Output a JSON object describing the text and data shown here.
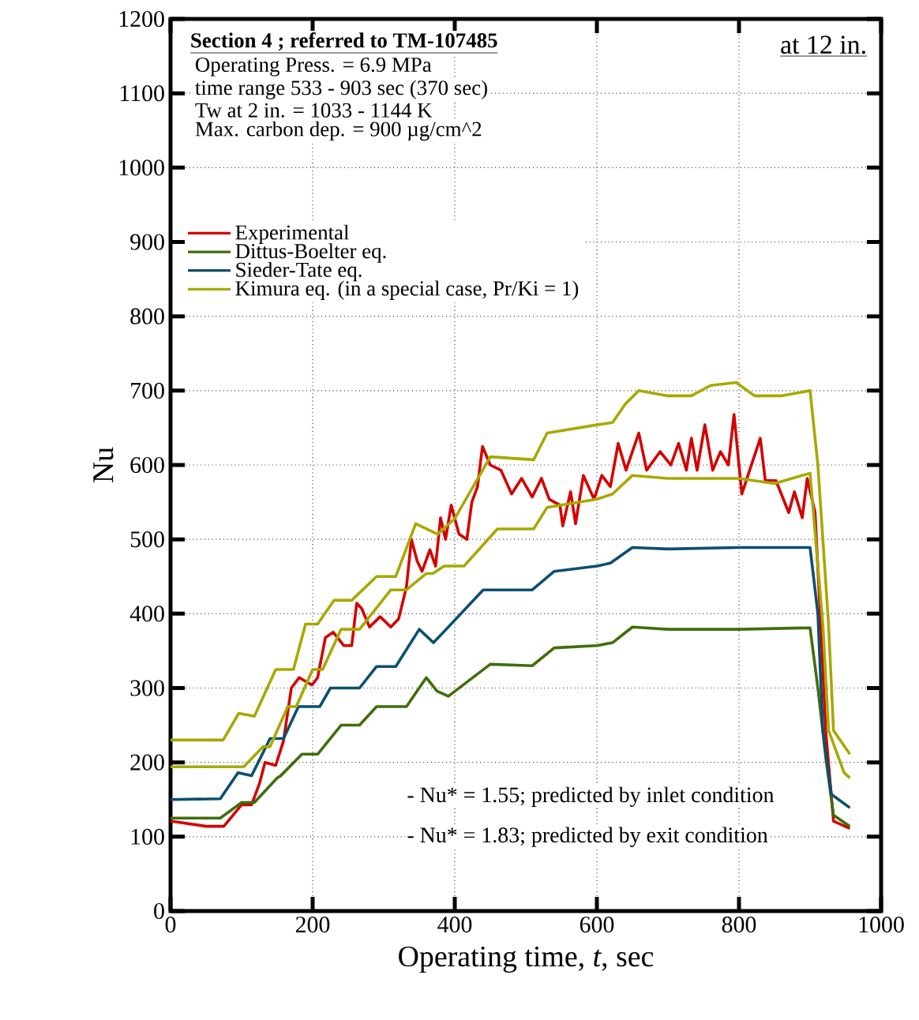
{
  "chart_data": {
    "type": "line",
    "title": "Section 4 ; referred to TM-107485",
    "xlabel": "Operating time,  *t*,  sec",
    "ylabel": "Nu",
    "annotations": [
      "Operating Press. = 6.9 MPa",
      "time range 533 - 903 sec (370 sec)",
      "Tw at 2 in. = 1033 - 1144 K",
      "Max. carbon dep. = 900 µg/cm^2",
      "at 12 in.",
      "- Nu* = 1.55; predicted by inlet condition",
      "- Nu* = 1.83; predicted by exit condition"
    ],
    "xlim": [
      0,
      1000
    ],
    "ylim": [
      0,
      1200
    ],
    "xticks": [
      0,
      200,
      400,
      600,
      800,
      1000
    ],
    "yticks": [
      0,
      100,
      200,
      300,
      400,
      500,
      600,
      700,
      800,
      900,
      1000,
      1100,
      1200
    ],
    "grid": true,
    "legend": "top left",
    "line_style": "solid",
    "marker": "none",
    "series": [
      {
        "name": "Experimental",
        "color": "#d40000",
        "x": [
          0,
          50,
          75,
          81,
          100,
          114,
          125,
          133,
          148,
          159,
          170,
          181,
          199,
          207,
          218,
          229,
          244,
          255,
          262,
          269,
          280,
          295,
          310,
          321,
          332,
          339,
          347,
          354,
          365,
          373,
          380,
          387,
          395,
          406,
          417,
          424,
          432,
          439,
          450,
          465,
          480,
          494,
          509,
          522,
          533,
          548,
          552,
          563,
          570,
          581,
          596,
          607,
          619,
          630,
          641,
          659,
          670,
          689,
          704,
          715,
          726,
          733,
          741,
          752,
          763,
          774,
          785,
          793,
          804,
          815,
          830,
          837,
          852,
          870,
          878,
          889,
          896,
          907,
          915,
          922,
          933,
          956
        ],
        "values": [
          121,
          114,
          114,
          121,
          143,
          143,
          171,
          200,
          196,
          229,
          300,
          314,
          304,
          314,
          368,
          375,
          357,
          357,
          414,
          407,
          382,
          396,
          382,
          393,
          436,
          500,
          471,
          457,
          486,
          464,
          529,
          500,
          546,
          507,
          500,
          550,
          571,
          625,
          600,
          593,
          561,
          582,
          557,
          582,
          554,
          546,
          518,
          564,
          521,
          586,
          554,
          586,
          571,
          629,
          593,
          643,
          593,
          618,
          600,
          629,
          593,
          636,
          593,
          654,
          593,
          618,
          600,
          668,
          561,
          593,
          636,
          579,
          579,
          536,
          564,
          529,
          582,
          536,
          386,
          243,
          121,
          111
        ]
      },
      {
        "name": "Dittus-Boelter eq.",
        "color": "#3f6e0c",
        "x": [
          0,
          70,
          100,
          118,
          150,
          155,
          185,
          207,
          240,
          266,
          290,
          332,
          360,
          375,
          391,
          450,
          509,
          540,
          600,
          622,
          650,
          700,
          800,
          900,
          911,
          922,
          933,
          956
        ],
        "values": [
          125,
          125,
          146,
          146,
          179,
          182,
          211,
          211,
          250,
          250,
          275,
          275,
          314,
          296,
          289,
          332,
          330,
          354,
          357,
          361,
          382,
          379,
          379,
          381,
          300,
          207,
          129,
          114
        ]
      },
      {
        "name": "Sieder-Tate eq.",
        "color": "#0c4f6e",
        "x": [
          0,
          70,
          95,
          114,
          140,
          159,
          180,
          210,
          225,
          266,
          290,
          317,
          350,
          370,
          384,
          440,
          509,
          540,
          600,
          619,
          650,
          700,
          800,
          900,
          911,
          918,
          930,
          956
        ],
        "values": [
          150,
          151,
          186,
          182,
          232,
          232,
          275,
          275,
          300,
          300,
          329,
          329,
          379,
          361,
          375,
          432,
          432,
          457,
          464,
          468,
          489,
          487,
          489,
          489,
          400,
          243,
          157,
          139
        ]
      },
      {
        "name": "Kimura eq. (in a special case, Pr/Ki = 1)",
        "color": "#a8a800",
        "x": [
          0,
          74,
          96,
          118,
          148,
          173,
          190,
          207,
          230,
          255,
          290,
          317,
          345,
          376,
          400,
          450,
          511,
          530,
          600,
          622,
          640,
          659,
          700,
          733,
          760,
          796,
          822,
          859,
          900,
          911,
          926,
          933,
          956
        ],
        "values": [
          230,
          230,
          266,
          262,
          325,
          325,
          386,
          386,
          418,
          418,
          450,
          450,
          521,
          507,
          528,
          611,
          607,
          643,
          654,
          657,
          682,
          700,
          693,
          693,
          707,
          711,
          693,
          693,
          700,
          600,
          386,
          243,
          211
        ]
      },
      {
        "color": "#a8a800",
        "x": [
          0,
          103,
          130,
          140,
          165,
          177,
          200,
          214,
          240,
          266,
          310,
          332,
          360,
          369,
          385,
          413,
          460,
          511,
          530,
          600,
          622,
          650,
          700,
          800,
          850,
          900,
          918,
          926,
          948,
          956
        ],
        "values": [
          194,
          194,
          221,
          221,
          275,
          275,
          325,
          325,
          379,
          379,
          432,
          432,
          454,
          454,
          464,
          464,
          514,
          514,
          543,
          554,
          561,
          586,
          582,
          582,
          575,
          589,
          386,
          243,
          186,
          179
        ]
      }
    ]
  }
}
